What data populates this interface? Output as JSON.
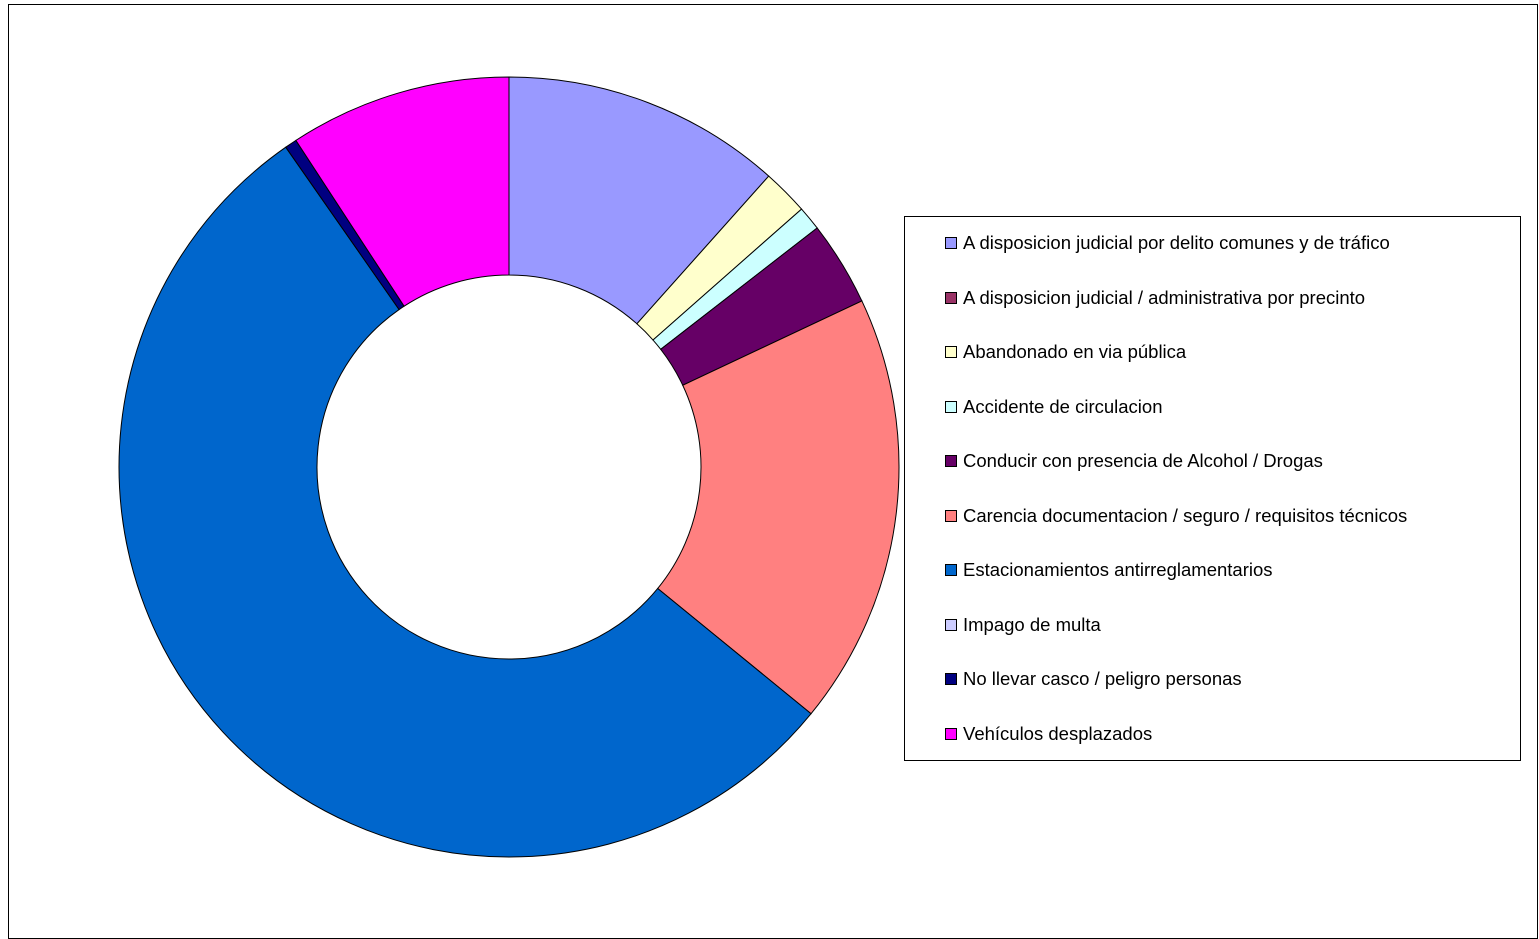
{
  "chart_data": {
    "type": "pie",
    "donut": true,
    "legend_position": "right",
    "categories": [
      "A disposicion judicial por delito comunes y de tráfico",
      "A disposicion judicial / administrativa por precinto",
      "Abandonado en via pública",
      "Accidente de circulacion",
      "Conducir con presencia de Alcohol / Drogas",
      "Carencia documentacion / seguro / requisitos técnicos",
      "Estacionamientos antirreglamentarios",
      "Impago de multa",
      "No llevar casco / peligro personas",
      "Vehículos desplazados"
    ],
    "values": [
      11.6,
      0.0,
      1.9,
      1.0,
      3.5,
      17.9,
      54.4,
      0.0,
      0.5,
      9.2
    ],
    "colors": [
      "#9999FF",
      "#993366",
      "#FFFFCC",
      "#CCFFFF",
      "#660066",
      "#FF8080",
      "#0066CC",
      "#CCCCFF",
      "#000080",
      "#FF00FF"
    ]
  }
}
